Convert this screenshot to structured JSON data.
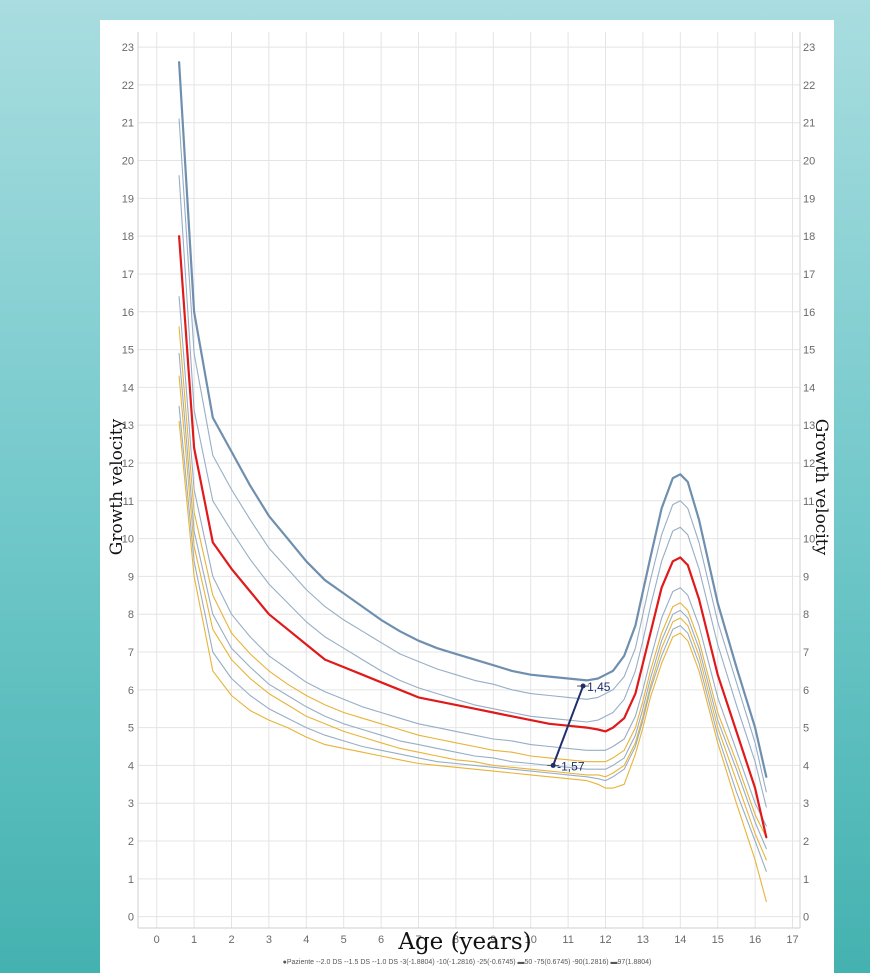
{
  "chart_data": {
    "type": "line",
    "xlabel": "Age (years)",
    "ylabel": "Growth velocity",
    "ylabel_right": "Growth velocity",
    "xlim": [
      -0.5,
      17.2
    ],
    "ylim": [
      -0.3,
      23.4
    ],
    "x_ticks": [
      "0",
      "1",
      "2",
      "3",
      "4",
      "5",
      "6",
      "7",
      "8",
      "9",
      "10",
      "11",
      "12",
      "13",
      "14",
      "15",
      "16",
      "17"
    ],
    "y_ticks": [
      "0",
      "1",
      "2",
      "3",
      "4",
      "5",
      "6",
      "7",
      "8",
      "9",
      "10",
      "11",
      "12",
      "13",
      "14",
      "15",
      "16",
      "17",
      "18",
      "19",
      "20",
      "21",
      "22",
      "23"
    ],
    "grid": true,
    "legend_position": "bottom",
    "legend_text": "●Paziente --2.0 DS --1.5 DS --1.0 DS -3(-1.8804) -10(-1.2816) -25(-0.6745) ▬50 -75(0.6745) -90(1.2816) ▬97(1.8804)",
    "x": [
      0.6,
      1.0,
      1.5,
      2.0,
      2.5,
      3.0,
      3.5,
      4.0,
      4.5,
      5.0,
      5.5,
      6.0,
      6.5,
      7.0,
      7.5,
      8.0,
      8.5,
      9.0,
      9.5,
      10.0,
      10.5,
      11.0,
      11.5,
      11.8,
      12.0,
      12.2,
      12.5,
      12.8,
      13.0,
      13.2,
      13.5,
      13.8,
      14.0,
      14.2,
      14.5,
      15.0,
      15.5,
      16.0,
      16.3
    ],
    "series": [
      {
        "name": "97(1.8804)",
        "color": "#6f8fae",
        "width": 2.2,
        "values": [
          22.6,
          16.0,
          13.2,
          12.3,
          11.4,
          10.6,
          10.0,
          9.4,
          8.9,
          8.55,
          8.2,
          7.85,
          7.55,
          7.3,
          7.1,
          6.95,
          6.8,
          6.65,
          6.5,
          6.4,
          6.35,
          6.3,
          6.25,
          6.3,
          6.4,
          6.5,
          6.9,
          7.7,
          8.6,
          9.5,
          10.8,
          11.6,
          11.7,
          11.5,
          10.5,
          8.3,
          6.6,
          5.0,
          3.7
        ]
      },
      {
        "name": "90(1.2816)",
        "color": "#97aec6",
        "width": 1.1,
        "values": [
          21.1,
          14.9,
          12.2,
          11.3,
          10.5,
          9.75,
          9.2,
          8.65,
          8.2,
          7.85,
          7.55,
          7.25,
          6.95,
          6.75,
          6.55,
          6.4,
          6.25,
          6.15,
          6.0,
          5.9,
          5.85,
          5.8,
          5.75,
          5.8,
          5.9,
          6.0,
          6.35,
          7.1,
          8.0,
          8.9,
          10.1,
          10.9,
          11.0,
          10.8,
          9.9,
          7.8,
          6.2,
          4.6,
          3.3
        ]
      },
      {
        "name": "75(0.6745)",
        "color": "#97aec6",
        "width": 1.1,
        "values": [
          19.6,
          13.4,
          11.0,
          10.2,
          9.45,
          8.8,
          8.3,
          7.8,
          7.4,
          7.1,
          6.8,
          6.5,
          6.25,
          6.05,
          5.9,
          5.75,
          5.6,
          5.5,
          5.4,
          5.3,
          5.25,
          5.2,
          5.15,
          5.2,
          5.3,
          5.4,
          5.75,
          6.5,
          7.3,
          8.2,
          9.4,
          10.2,
          10.3,
          10.1,
          9.2,
          7.2,
          5.6,
          4.1,
          2.9
        ]
      },
      {
        "name": "50",
        "color": "#e0191b",
        "width": 2.2,
        "values": [
          18.0,
          12.4,
          9.9,
          9.2,
          8.6,
          8.0,
          7.6,
          7.2,
          6.8,
          6.6,
          6.4,
          6.2,
          6.0,
          5.8,
          5.7,
          5.6,
          5.5,
          5.4,
          5.3,
          5.2,
          5.1,
          5.05,
          5.0,
          4.95,
          4.9,
          5.0,
          5.25,
          5.9,
          6.7,
          7.5,
          8.7,
          9.4,
          9.5,
          9.3,
          8.4,
          6.4,
          4.9,
          3.4,
          2.1
        ]
      },
      {
        "name": "25(-0.6745)",
        "color": "#97aec6",
        "width": 1.1,
        "values": [
          16.4,
          11.3,
          9.0,
          8.0,
          7.4,
          6.9,
          6.55,
          6.2,
          5.95,
          5.75,
          5.55,
          5.4,
          5.25,
          5.1,
          5.0,
          4.9,
          4.8,
          4.7,
          4.65,
          4.55,
          4.5,
          4.45,
          4.4,
          4.4,
          4.4,
          4.5,
          4.7,
          5.3,
          6.0,
          6.8,
          7.9,
          8.6,
          8.7,
          8.5,
          7.7,
          5.8,
          4.4,
          3.0,
          2.4
        ]
      },
      {
        "name": "-1.0 DS",
        "color": "#e8b339",
        "width": 1.1,
        "values": [
          15.6,
          10.7,
          8.5,
          7.5,
          6.95,
          6.5,
          6.15,
          5.85,
          5.6,
          5.4,
          5.25,
          5.1,
          4.95,
          4.8,
          4.7,
          4.6,
          4.5,
          4.4,
          4.35,
          4.25,
          4.2,
          4.15,
          4.1,
          4.1,
          4.1,
          4.2,
          4.4,
          5.0,
          5.7,
          6.5,
          7.5,
          8.2,
          8.3,
          8.1,
          7.3,
          5.4,
          4.1,
          2.7,
          2.1
        ]
      },
      {
        "name": "10(-1.2816)",
        "color": "#97aec6",
        "width": 1.1,
        "values": [
          14.9,
          10.2,
          8.0,
          7.1,
          6.6,
          6.15,
          5.85,
          5.55,
          5.3,
          5.1,
          4.95,
          4.8,
          4.65,
          4.55,
          4.45,
          4.35,
          4.25,
          4.2,
          4.1,
          4.05,
          4.0,
          3.95,
          3.9,
          3.9,
          3.9,
          4.0,
          4.2,
          4.8,
          5.5,
          6.3,
          7.3,
          8.0,
          8.1,
          7.9,
          7.1,
          5.2,
          3.9,
          2.5,
          1.8
        ]
      },
      {
        "name": "-1.5 DS",
        "color": "#e8b339",
        "width": 1.1,
        "values": [
          14.3,
          9.8,
          7.6,
          6.8,
          6.3,
          5.9,
          5.6,
          5.3,
          5.1,
          4.9,
          4.75,
          4.6,
          4.45,
          4.35,
          4.25,
          4.15,
          4.1,
          4.0,
          3.95,
          3.9,
          3.85,
          3.8,
          3.75,
          3.75,
          3.7,
          3.8,
          4.0,
          4.6,
          5.3,
          6.1,
          7.1,
          7.8,
          7.9,
          7.7,
          6.9,
          5.0,
          3.6,
          2.2,
          1.5
        ]
      },
      {
        "name": "3(-1.8804)",
        "color": "#97aec6",
        "width": 1.1,
        "values": [
          13.5,
          9.4,
          7.0,
          6.3,
          5.85,
          5.5,
          5.25,
          5.0,
          4.8,
          4.65,
          4.5,
          4.4,
          4.3,
          4.2,
          4.1,
          4.05,
          4.0,
          3.95,
          3.9,
          3.85,
          3.8,
          3.75,
          3.7,
          3.65,
          3.6,
          3.7,
          3.9,
          4.5,
          5.2,
          6.0,
          6.9,
          7.6,
          7.7,
          7.5,
          6.7,
          4.8,
          3.3,
          2.0,
          1.2
        ]
      },
      {
        "name": "-2.0 DS",
        "color": "#e8b339",
        "width": 1.1,
        "values": [
          13.1,
          9.0,
          6.5,
          5.85,
          5.45,
          5.2,
          5.0,
          4.75,
          4.55,
          4.45,
          4.35,
          4.25,
          4.15,
          4.05,
          4.0,
          3.95,
          3.9,
          3.85,
          3.8,
          3.75,
          3.7,
          3.65,
          3.6,
          3.5,
          3.4,
          3.4,
          3.5,
          4.3,
          5.0,
          5.8,
          6.7,
          7.4,
          7.5,
          7.3,
          6.5,
          4.6,
          3.0,
          1.5,
          0.4
        ]
      }
    ],
    "patient": {
      "name": "Paziente",
      "points": [
        {
          "x": 10.6,
          "y": 4.0,
          "label": "-1,57"
        },
        {
          "x": 11.4,
          "y": 6.1,
          "label": "1,45"
        }
      ]
    }
  },
  "colors": {
    "background": "#ffffff",
    "grid": "#e4e4e4",
    "percentile_line": "#97aec6",
    "outer_percentile_line": "#6f8fae",
    "median_line": "#e0191b",
    "sd_line": "#e8b339",
    "patient_line": "#1f2f6b"
  }
}
